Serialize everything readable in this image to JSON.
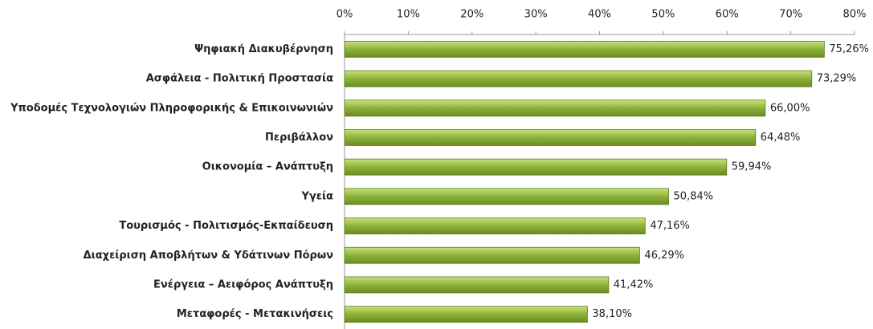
{
  "chart_data": {
    "type": "bar",
    "orientation": "horizontal",
    "categories": [
      "Ψηφιακή Διακυβέρνηση",
      "Ασφάλεια - Πολιτική Προστασία",
      "Υποδομές Τεχνολογιών Πληροφορικής & Επικοινωνιών",
      "Περιβάλλον",
      "Οικονομία – Ανάπτυξη",
      "Υγεία",
      "Τουρισμός - Πολιτισμός-Εκπαίδευση",
      "Διαχείριση Αποβλήτων & Υδάτινων Πόρων",
      "Ενέργεια – Αειφόρος Ανάπτυξη",
      "Μεταφορές - Μετακινήσεις"
    ],
    "values": [
      75.26,
      73.29,
      66.0,
      64.48,
      59.94,
      50.84,
      47.16,
      46.29,
      41.42,
      38.1
    ],
    "value_labels": [
      "75,26%",
      "73,29%",
      "66,00%",
      "64,48%",
      "59,94%",
      "50,84%",
      "47,16%",
      "46,29%",
      "41,42%",
      "38,10%"
    ],
    "color": "#8db33a",
    "xlim": [
      0,
      80
    ],
    "xticks": [
      {
        "value": 0,
        "label": "0%"
      },
      {
        "value": 10,
        "label": "10%"
      },
      {
        "value": 20,
        "label": "20%"
      },
      {
        "value": 30,
        "label": "30%"
      },
      {
        "value": 40,
        "label": "40%"
      },
      {
        "value": 50,
        "label": "50%"
      },
      {
        "value": 60,
        "label": "60%"
      },
      {
        "value": 70,
        "label": "70%"
      },
      {
        "value": 80,
        "label": "80%"
      }
    ],
    "grid": false
  }
}
